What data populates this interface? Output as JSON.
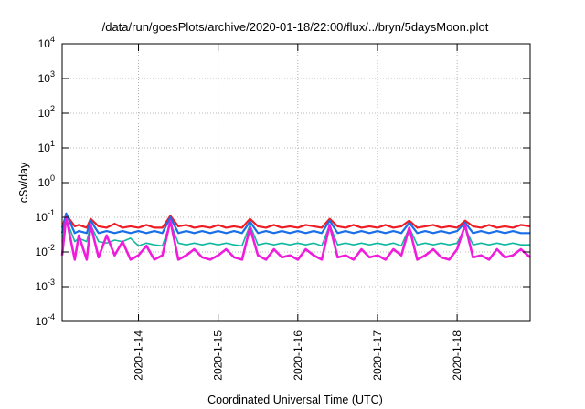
{
  "chart_data": {
    "type": "line",
    "title": "/data/run/goesPlots/archive/2020-01-18/22:00/flux/../bryn/5daysMoon.plot",
    "xlabel": "Coordinated Universal Time (UTC)",
    "ylabel": "cSv/day",
    "yscale": "log",
    "ylim": [
      0.0001,
      10000
    ],
    "xlim": [
      "2020-01-13T01:00",
      "2020-01-18T22:00"
    ],
    "grid": true,
    "legend": "none",
    "y_ticks": [
      {
        "value": 0.0001,
        "base": "10",
        "exp": "-4"
      },
      {
        "value": 0.001,
        "base": "10",
        "exp": "-3"
      },
      {
        "value": 0.01,
        "base": "10",
        "exp": "-2"
      },
      {
        "value": 0.1,
        "base": "10",
        "exp": "-1"
      },
      {
        "value": 1,
        "base": "10",
        "exp": "0"
      },
      {
        "value": 10,
        "base": "10",
        "exp": "1"
      },
      {
        "value": 100,
        "base": "10",
        "exp": "2"
      },
      {
        "value": 1000,
        "base": "10",
        "exp": "3"
      },
      {
        "value": 10000,
        "base": "10",
        "exp": "4"
      }
    ],
    "x_ticks": [
      {
        "value": "2020-01-14T00:00",
        "label": "2020-1-14"
      },
      {
        "value": "2020-01-15T00:00",
        "label": "2020-1-15"
      },
      {
        "value": "2020-01-16T00:00",
        "label": "2020-1-16"
      },
      {
        "value": "2020-01-17T00:00",
        "label": "2020-1-17"
      },
      {
        "value": "2020-01-18T00:00",
        "label": "2020-1-18"
      }
    ],
    "x": [
      "2020-01-13T01:00",
      "2020-01-13T02:12",
      "2020-01-13T04:48",
      "2020-01-13T06:00",
      "2020-01-13T08:24",
      "2020-01-13T09:36",
      "2020-01-13T12:00",
      "2020-01-13T14:24",
      "2020-01-13T16:48",
      "2020-01-13T19:12",
      "2020-01-13T21:36",
      "2020-01-14T00:00",
      "2020-01-14T02:24",
      "2020-01-14T04:48",
      "2020-01-14T07:12",
      "2020-01-14T09:36",
      "2020-01-14T12:00",
      "2020-01-14T14:24",
      "2020-01-14T16:48",
      "2020-01-14T19:12",
      "2020-01-14T21:36",
      "2020-01-15T00:00",
      "2020-01-15T02:24",
      "2020-01-15T04:48",
      "2020-01-15T07:12",
      "2020-01-15T09:36",
      "2020-01-15T12:00",
      "2020-01-15T14:24",
      "2020-01-15T16:48",
      "2020-01-15T19:12",
      "2020-01-15T21:36",
      "2020-01-16T00:00",
      "2020-01-16T02:24",
      "2020-01-16T04:48",
      "2020-01-16T07:12",
      "2020-01-16T09:36",
      "2020-01-16T12:00",
      "2020-01-16T14:24",
      "2020-01-16T16:48",
      "2020-01-16T19:12",
      "2020-01-16T21:36",
      "2020-01-17T00:00",
      "2020-01-17T02:24",
      "2020-01-17T04:48",
      "2020-01-17T07:12",
      "2020-01-17T09:36",
      "2020-01-17T12:00",
      "2020-01-17T14:24",
      "2020-01-17T16:48",
      "2020-01-17T19:12",
      "2020-01-17T21:36",
      "2020-01-18T00:00",
      "2020-01-18T02:24",
      "2020-01-18T04:48",
      "2020-01-18T07:12",
      "2020-01-18T09:36",
      "2020-01-18T12:00",
      "2020-01-18T14:24",
      "2020-01-18T16:48",
      "2020-01-18T19:12",
      "2020-01-18T22:00"
    ],
    "series": [
      {
        "color": "#ee1c25",
        "width": 2.2,
        "values": [
          0.05,
          0.12,
          0.055,
          0.06,
          0.05,
          0.09,
          0.055,
          0.05,
          0.065,
          0.05,
          0.055,
          0.05,
          0.06,
          0.05,
          0.05,
          0.11,
          0.055,
          0.06,
          0.05,
          0.055,
          0.05,
          0.06,
          0.05,
          0.055,
          0.05,
          0.09,
          0.055,
          0.05,
          0.06,
          0.05,
          0.055,
          0.05,
          0.06,
          0.055,
          0.05,
          0.09,
          0.055,
          0.05,
          0.06,
          0.05,
          0.055,
          0.05,
          0.06,
          0.05,
          0.055,
          0.08,
          0.05,
          0.055,
          0.06,
          0.05,
          0.055,
          0.05,
          0.08,
          0.055,
          0.05,
          0.06,
          0.05,
          0.055,
          0.05,
          0.06,
          0.055
        ]
      },
      {
        "color": "#1a6fe8",
        "width": 2.2,
        "values": [
          0.035,
          0.13,
          0.035,
          0.04,
          0.035,
          0.08,
          0.035,
          0.04,
          0.035,
          0.04,
          0.035,
          0.04,
          0.035,
          0.04,
          0.035,
          0.1,
          0.035,
          0.04,
          0.035,
          0.04,
          0.035,
          0.04,
          0.035,
          0.04,
          0.035,
          0.075,
          0.035,
          0.04,
          0.035,
          0.04,
          0.035,
          0.04,
          0.035,
          0.04,
          0.035,
          0.08,
          0.035,
          0.04,
          0.035,
          0.04,
          0.035,
          0.04,
          0.035,
          0.04,
          0.035,
          0.07,
          0.035,
          0.04,
          0.035,
          0.04,
          0.035,
          0.04,
          0.07,
          0.035,
          0.04,
          0.035,
          0.04,
          0.035,
          0.04,
          0.035,
          0.035
        ]
      },
      {
        "color": "#10b8a0",
        "width": 1.6,
        "values": [
          0.02,
          0.09,
          0.02,
          0.025,
          0.02,
          0.06,
          0.02,
          0.018,
          0.022,
          0.02,
          0.025,
          0.015,
          0.018,
          0.016,
          0.015,
          0.07,
          0.018,
          0.016,
          0.018,
          0.016,
          0.018,
          0.016,
          0.018,
          0.016,
          0.015,
          0.06,
          0.016,
          0.018,
          0.016,
          0.018,
          0.016,
          0.018,
          0.016,
          0.018,
          0.015,
          0.06,
          0.016,
          0.018,
          0.016,
          0.018,
          0.016,
          0.018,
          0.016,
          0.018,
          0.015,
          0.05,
          0.016,
          0.018,
          0.016,
          0.018,
          0.016,
          0.018,
          0.05,
          0.016,
          0.018,
          0.016,
          0.018,
          0.016,
          0.018,
          0.016,
          0.016
        ]
      },
      {
        "color": "#f01cdc",
        "width": 2.6,
        "values": [
          0.008,
          0.1,
          0.006,
          0.03,
          0.006,
          0.06,
          0.007,
          0.03,
          0.008,
          0.02,
          0.006,
          0.008,
          0.015,
          0.006,
          0.008,
          0.08,
          0.006,
          0.008,
          0.012,
          0.007,
          0.006,
          0.008,
          0.012,
          0.007,
          0.006,
          0.05,
          0.008,
          0.006,
          0.012,
          0.007,
          0.008,
          0.006,
          0.012,
          0.008,
          0.006,
          0.06,
          0.007,
          0.008,
          0.006,
          0.012,
          0.007,
          0.008,
          0.006,
          0.012,
          0.008,
          0.05,
          0.006,
          0.008,
          0.012,
          0.007,
          0.006,
          0.012,
          0.06,
          0.007,
          0.008,
          0.006,
          0.012,
          0.007,
          0.008,
          0.012,
          0.007
        ]
      }
    ]
  }
}
